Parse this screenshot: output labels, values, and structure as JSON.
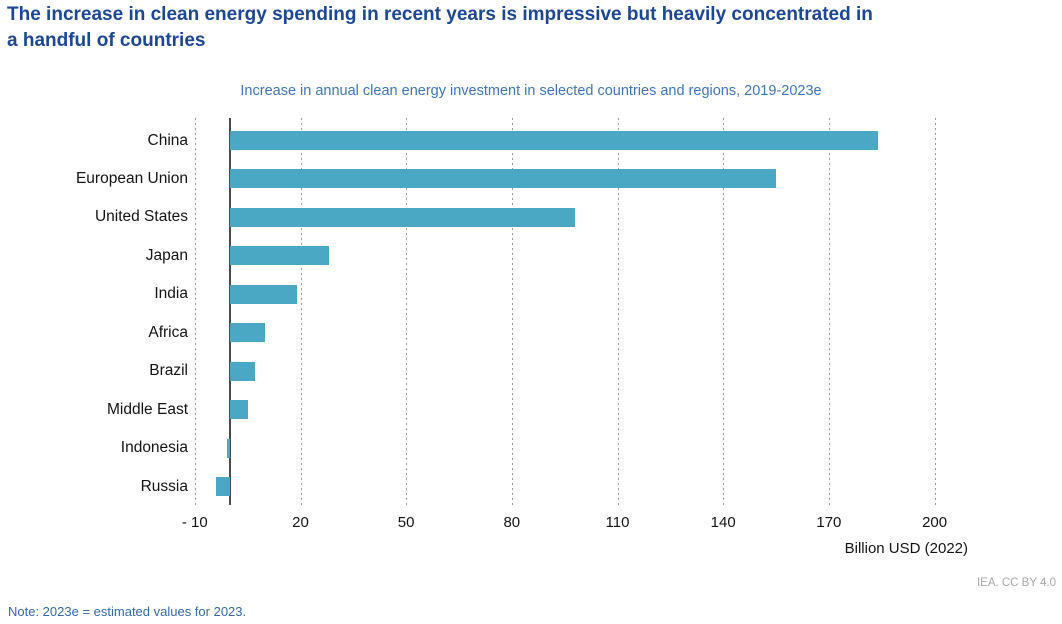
{
  "page": {
    "title_line1": "The increase in clean energy spending in recent years is impressive but heavily concentrated in",
    "title_line2": "a handful of countries",
    "note": "Note: 2023e = estimated values for 2023.",
    "attribution": "IEA. CC BY 4.0"
  },
  "chart_data": {
    "type": "bar",
    "orientation": "horizontal",
    "title": "Increase in annual clean energy investment in selected countries and regions, 2019-2023e",
    "categories": [
      "China",
      "European Union",
      "United States",
      "Japan",
      "India",
      "Africa",
      "Brazil",
      "Middle East",
      "Indonesia",
      "Russia"
    ],
    "values": [
      184,
      155,
      98,
      28,
      19,
      10,
      7,
      5,
      -1,
      -4
    ],
    "xlabel": "Billion USD (2022)",
    "xticks": [
      -10,
      20,
      50,
      80,
      110,
      140,
      170,
      200
    ],
    "xtick_labels": [
      "- 10",
      "20",
      "50",
      "80",
      "110",
      "140",
      "170",
      "200"
    ],
    "xlim": [
      -14,
      215
    ],
    "grid": "vertical dotted gridlines at each tick, solid vertical line at zero",
    "legend": "none",
    "unit": "Billion USD (2022)"
  },
  "colors": {
    "bar-color": "#4ba8c4",
    "title-color": "#1b4795",
    "subtitle-color": "#3c77be",
    "note-color": "#3069b0",
    "axis-line-color": "#4a4a4a",
    "gridline-color": "#9b9b9b"
  }
}
